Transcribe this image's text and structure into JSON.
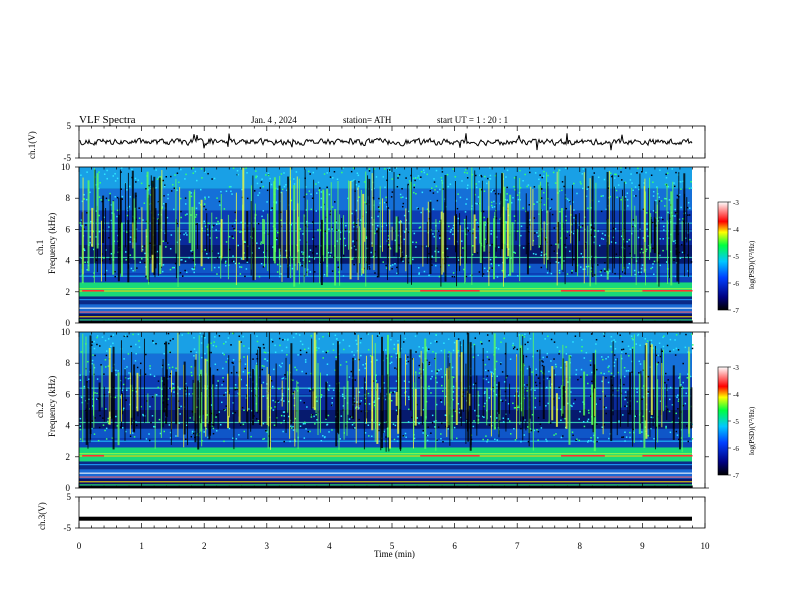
{
  "header": {
    "title": "VLF  Spectra",
    "date": "Jan. 4 , 2024",
    "station": "station= ATH",
    "start": "start  UT  =   1 : 20 : 1"
  },
  "colors": {
    "spectrogram_low": "#000080",
    "spectrogram_mid": "#00c8ff",
    "spectrogram_high": "#00ff40",
    "spectrogram_peak": "#ff0000",
    "trace": "#000000"
  },
  "chart_data": [
    {
      "type": "line",
      "panel": "ch1-waveform",
      "ylabel": "ch.1(V)",
      "ylim": [
        -5,
        5
      ],
      "yticks": [
        "5",
        "-5"
      ],
      "xlim": [
        0,
        10
      ],
      "description_series": "noisy waveform near 0 V with occasional spikes",
      "series": [
        {
          "values": [
            0.2,
            0.1,
            -0.3,
            0.4,
            -0.1,
            0.3,
            0.0,
            -0.2,
            0.3,
            0.1,
            -0.4,
            0.2
          ]
        }
      ]
    },
    {
      "type": "heatmap",
      "panel": "ch1-spectrogram",
      "ylabel": "ch.1\nFrequency (kHz)",
      "ylabel_line1": "ch.1",
      "ylabel_line2": "Frequency  (kHz)",
      "ylim": [
        0,
        10
      ],
      "yticks": [
        "0",
        "2",
        "4",
        "6",
        "8",
        "10"
      ],
      "xlim": [
        0,
        10
      ],
      "colorbar": {
        "label": "log(PSD)(V²/Hz)",
        "range": [
          -7,
          -3
        ],
        "ticks": [
          "-3",
          "-4",
          "-5",
          "-6",
          "-7"
        ]
      }
    },
    {
      "type": "heatmap",
      "panel": "ch2-spectrogram",
      "ylabel_line1": "ch.2",
      "ylabel_line2": "Frequency  (kHz)",
      "ylim": [
        0,
        10
      ],
      "yticks": [
        "0",
        "2",
        "4",
        "6",
        "8",
        "10"
      ],
      "xlim": [
        0,
        10
      ],
      "colorbar": {
        "label": "log(PSD)(V²/Hz)",
        "range": [
          -7,
          -3
        ],
        "ticks": [
          "-3",
          "-4",
          "-5",
          "-6",
          "-7"
        ]
      }
    },
    {
      "type": "line",
      "panel": "ch3-waveform",
      "ylabel": "ch.3(V)",
      "ylim": [
        -5,
        5
      ],
      "yticks": [
        "5",
        "-5"
      ],
      "xlim": [
        0,
        10
      ],
      "xticks": [
        "0",
        "1",
        "2",
        "3",
        "4",
        "5",
        "6",
        "7",
        "8",
        "9",
        "10"
      ],
      "xlabel": "Time  (min)",
      "series": [
        {
          "values": [
            -2.0,
            -2.0,
            -2.0,
            -2.0,
            -2.0,
            -2.0,
            -2.0,
            -2.0,
            -2.0,
            -2.0,
            -2.0
          ]
        }
      ]
    }
  ]
}
